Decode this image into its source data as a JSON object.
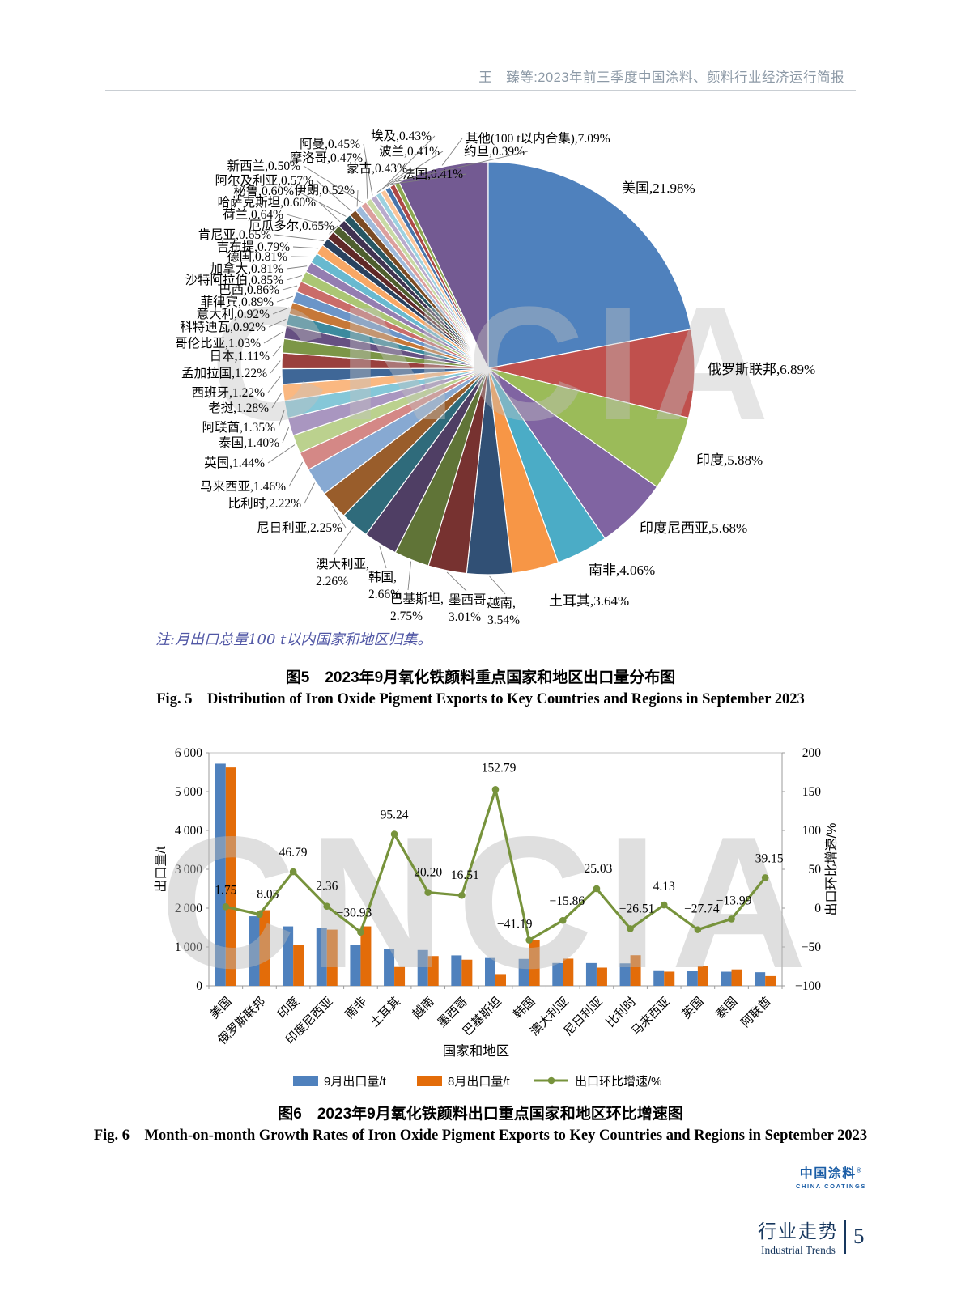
{
  "page": {
    "header_title": "王　臻等:2023年前三季度中国涂料、颜料行业经济运行简报",
    "note": "注:月出口总量100 t以内国家和地区归集。",
    "fig5_caption_zh": "图5　2023年9月氧化铁颜料重点国家和地区出口量分布图",
    "fig5_caption_en": "Fig. 5　Distribution of Iron Oxide Pigment Exports to Key Countries and Regions in September 2023",
    "fig6_caption_zh": "图6　2023年9月氧化铁颜料出口重点国家和地区环比增速图",
    "fig6_caption_en": "Fig. 6　Month-on-month Growth Rates of Iron Oxide Pigment Exports to Key Countries and Regions in September 2023",
    "footer": {
      "logo_zh": "中国涂料",
      "logo_reg": "®",
      "logo_en": "CHINA COATINGS",
      "section_zh": "行业走势",
      "section_en": "Industrial Trends",
      "page_number": "5"
    }
  },
  "watermark": "CNCIA",
  "colors": {
    "note": "#5157A5",
    "header": "#8C99A6",
    "footer_blue": "#17375E",
    "logo_blue": "#1A5DA6"
  },
  "chart_data": [
    {
      "type": "pie",
      "title": "2023年9月氧化铁颜料重点国家和地区出口量分布图",
      "start_angle": "top",
      "direction": "clockwise",
      "palette": [
        "#4F81BD",
        "#C0504D",
        "#9BBB59",
        "#8064A2",
        "#4BACC6",
        "#F79646"
      ],
      "slices": [
        {
          "name": "美国",
          "pct": 21.98
        },
        {
          "name": "俄罗斯联邦",
          "pct": 6.89
        },
        {
          "name": "印度",
          "pct": 5.88
        },
        {
          "name": "印度尼西亚",
          "pct": 5.68
        },
        {
          "name": "南非",
          "pct": 4.06
        },
        {
          "name": "土耳其",
          "pct": 3.64
        },
        {
          "name": "越南",
          "pct": 3.54
        },
        {
          "name": "墨西哥",
          "pct": 3.01
        },
        {
          "name": "巴基斯坦",
          "pct": 2.75
        },
        {
          "name": "韩国",
          "pct": 2.66
        },
        {
          "name": "澳大利亚",
          "pct": 2.26
        },
        {
          "name": "尼日利亚",
          "pct": 2.25
        },
        {
          "name": "比利时",
          "pct": 2.22
        },
        {
          "name": "马来西亚",
          "pct": 1.46
        },
        {
          "name": "英国",
          "pct": 1.44
        },
        {
          "name": "泰国",
          "pct": 1.4
        },
        {
          "name": "阿联酋",
          "pct": 1.35
        },
        {
          "name": "老挝",
          "pct": 1.28
        },
        {
          "name": "西班牙",
          "pct": 1.22
        },
        {
          "name": "孟加拉国",
          "pct": 1.22
        },
        {
          "name": "日本",
          "pct": 1.11
        },
        {
          "name": "哥伦比亚",
          "pct": 1.03
        },
        {
          "name": "科特迪瓦",
          "pct": 0.92
        },
        {
          "name": "意大利",
          "pct": 0.92
        },
        {
          "name": "菲律宾",
          "pct": 0.89
        },
        {
          "name": "巴西",
          "pct": 0.86
        },
        {
          "name": "沙特阿拉伯",
          "pct": 0.85
        },
        {
          "name": "加拿大",
          "pct": 0.81
        },
        {
          "name": "德国",
          "pct": 0.81
        },
        {
          "name": "吉布提",
          "pct": 0.79
        },
        {
          "name": "肯尼亚",
          "pct": 0.65
        },
        {
          "name": "厄瓜多尔",
          "pct": 0.65
        },
        {
          "name": "荷兰",
          "pct": 0.64
        },
        {
          "name": "哈萨克斯坦",
          "pct": 0.6
        },
        {
          "name": "秘鲁",
          "pct": 0.6
        },
        {
          "name": "阿尔及利亚",
          "pct": 0.57
        },
        {
          "name": "伊朗",
          "pct": 0.52
        },
        {
          "name": "新西兰",
          "pct": 0.5
        },
        {
          "name": "摩洛哥",
          "pct": 0.47
        },
        {
          "name": "阿曼",
          "pct": 0.45
        },
        {
          "name": "蒙古",
          "pct": 0.43
        },
        {
          "name": "埃及",
          "pct": 0.43
        },
        {
          "name": "波兰",
          "pct": 0.41
        },
        {
          "name": "法国",
          "pct": 0.41
        },
        {
          "name": "约旦",
          "pct": 0.39
        },
        {
          "name": "其他(100 t以内合集)",
          "pct": 7.09
        }
      ]
    },
    {
      "type": "bar",
      "subtype": "bar-line-combo",
      "title": "2023年9月氧化铁颜料出口重点国家和地区环比增速图",
      "categories": [
        "美国",
        "俄罗斯联邦",
        "印度",
        "印度尼西亚",
        "南非",
        "土耳其",
        "越南",
        "墨西哥",
        "巴基斯坦",
        "韩国",
        "澳大利亚",
        "尼日利亚",
        "比利时",
        "马来西亚",
        "英国",
        "泰国",
        "阿联酋"
      ],
      "series": [
        {
          "name": "9月出口量/t",
          "kind": "bar",
          "color": "#4F81BD",
          "values": [
            5720,
            1790,
            1530,
            1480,
            1057,
            947,
            921,
            783,
            716,
            692,
            588,
            586,
            578,
            380,
            375,
            364,
            351
          ]
        },
        {
          "name": "8月出口量/t",
          "kind": "bar",
          "color": "#E36C09",
          "values": [
            5622,
            1947,
            1042,
            1446,
            1530,
            485,
            766,
            672,
            283,
            1177,
            699,
            469,
            787,
            365,
            519,
            423,
            252
          ]
        },
        {
          "name": "出口环比增速/%",
          "kind": "line",
          "color": "#77933C",
          "values": [
            1.75,
            -8.05,
            46.79,
            2.36,
            -30.93,
            95.24,
            20.2,
            16.51,
            152.79,
            -41.19,
            -15.86,
            25.03,
            -26.51,
            4.13,
            -27.74,
            -13.99,
            39.15
          ]
        }
      ],
      "y_left": {
        "title": "出口量/t",
        "min": 0,
        "max": 6000,
        "step": 1000
      },
      "y_right": {
        "title": "出口环比增速/%",
        "min": -100,
        "max": 200,
        "step": 50
      },
      "xlabel": "国家和地区",
      "grid": false,
      "legend_position": "bottom"
    }
  ]
}
